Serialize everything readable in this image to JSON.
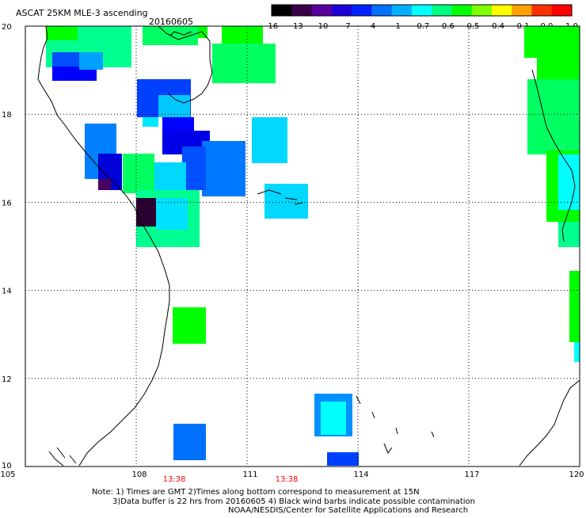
{
  "header": {
    "title": "ASCAT 25KM MLE-3 ascending",
    "date": "20160605"
  },
  "colorbar": {
    "ticks": [
      "-16",
      "-13",
      "-10",
      "-7",
      "-4",
      "-1",
      "-0.7",
      "-0.6",
      "-0.5",
      "-0.4",
      "-0.1",
      "0.0",
      "1.0"
    ],
    "colors": [
      "#000000",
      "#3a0048",
      "#5a00a0",
      "#2000d8",
      "#0020ff",
      "#0070ff",
      "#00b0ff",
      "#00ffff",
      "#00ff80",
      "#00ff00",
      "#80ff00",
      "#ffff00",
      "#ffa000",
      "#ff3000",
      "#ff0000"
    ]
  },
  "axes": {
    "x_labels": [
      "105",
      "108",
      "111",
      "114",
      "117",
      "120"
    ],
    "y_labels": [
      "20",
      "18",
      "16",
      "14",
      "12",
      "10"
    ]
  },
  "times": [
    "13:38",
    "13:38"
  ],
  "notes": {
    "line1": "Note: 1) Times are GMT 2)Times along bottom correspond to measurement at 15N",
    "line2": "3)Data buffer is 22 hrs from 20160605 4) Black wind barbs indicate possible contamination",
    "line3": "NOAA/NESDIS/Center for Satellite Applications and Research"
  },
  "palette": {
    "dark": "#2a0030",
    "blue": "#0000ff",
    "midblue": "#0060ff",
    "lightblue": "#0090ff",
    "cyan": "#00ffff",
    "cyan2": "#00d8ff",
    "seagreen": "#00ff90",
    "green": "#00ff00",
    "time_red": "#ff0000"
  }
}
